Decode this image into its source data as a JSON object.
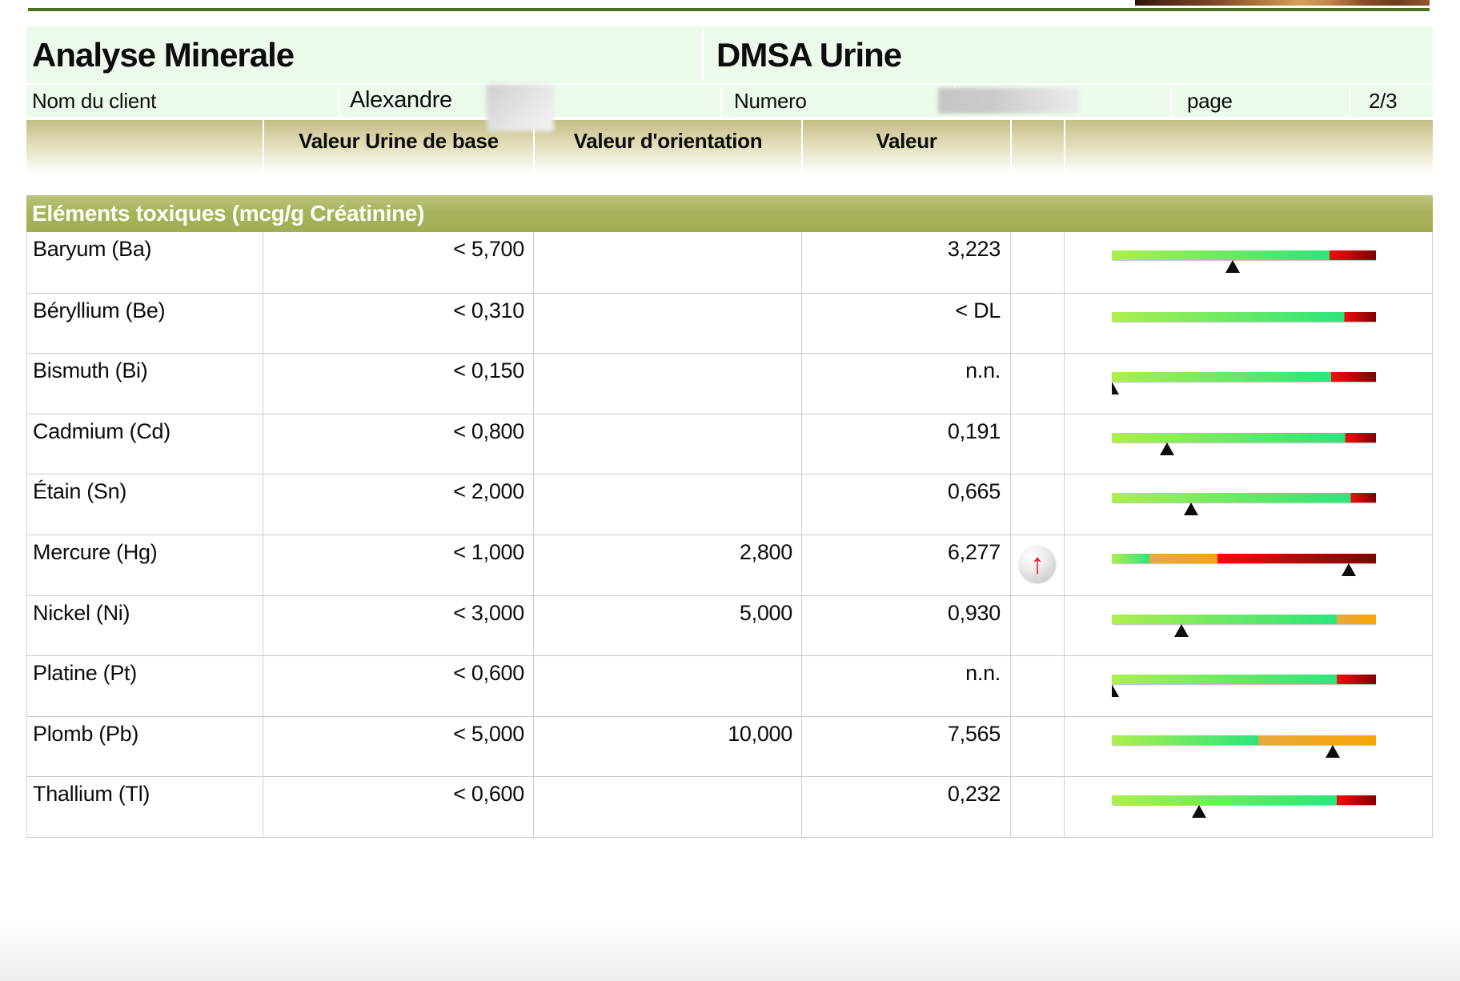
{
  "header": {
    "title_left": "Analyse Minerale",
    "title_right": "DMSA Urine",
    "client_label": "Nom du client",
    "client_name": "Alexandre",
    "numero_label": "Numero",
    "page_label": "page",
    "page_value": "2/3"
  },
  "columns": {
    "base": "Valeur Urine de base",
    "orientation": "Valeur d'orientation",
    "valeur": "Valeur"
  },
  "section": {
    "title": "Eléments toxiques (mcg/g Créatinine)"
  },
  "rows": [
    {
      "name": "Baryum (Ba)",
      "base": "< 5,700",
      "orientation": "",
      "value": "3,223",
      "flag": "",
      "bar": {
        "segments": [
          [
            "green",
            0.824
          ],
          [
            "red",
            1
          ]
        ],
        "marker": 0.458
      }
    },
    {
      "name": "Béryllium (Be)",
      "base": "< 0,310",
      "orientation": "",
      "value": "< DL",
      "flag": "",
      "bar": {
        "segments": [
          [
            "green",
            0.88
          ],
          [
            "red",
            1
          ]
        ],
        "marker": null
      }
    },
    {
      "name": "Bismuth (Bi)",
      "base": "< 0,150",
      "orientation": "",
      "value": "n.n.",
      "flag": "",
      "bar": {
        "segments": [
          [
            "green",
            0.83
          ],
          [
            "red",
            1
          ]
        ],
        "marker": 0.0
      }
    },
    {
      "name": "Cadmium (Cd)",
      "base": "< 0,800",
      "orientation": "",
      "value": "0,191",
      "flag": "",
      "bar": {
        "segments": [
          [
            "green",
            0.884
          ],
          [
            "red",
            1
          ]
        ],
        "marker": 0.208
      }
    },
    {
      "name": "Étain (Sn)",
      "base": "< 2,000",
      "orientation": "",
      "value": "0,665",
      "flag": "",
      "bar": {
        "segments": [
          [
            "green",
            0.905
          ],
          [
            "red",
            1
          ]
        ],
        "marker": 0.3
      }
    },
    {
      "name": "Mercure (Hg)",
      "base": "< 1,000",
      "orientation": "2,800",
      "value": "6,277",
      "flag": "up",
      "bar": {
        "segments": [
          [
            "green",
            0.143
          ],
          [
            "orange",
            0.4
          ],
          [
            "red",
            1
          ]
        ],
        "marker": 0.896
      }
    },
    {
      "name": "Nickel (Ni)",
      "base": "< 3,000",
      "orientation": "5,000",
      "value": "0,930",
      "flag": "",
      "bar": {
        "segments": [
          [
            "green",
            0.851
          ],
          [
            "orange",
            1
          ]
        ],
        "marker": 0.265
      }
    },
    {
      "name": "Platine (Pt)",
      "base": "< 0,600",
      "orientation": "",
      "value": "n.n.",
      "flag": "",
      "bar": {
        "segments": [
          [
            "green",
            0.851
          ],
          [
            "red",
            1
          ]
        ],
        "marker": 0.0
      }
    },
    {
      "name": "Plomb (Pb)",
      "base": "< 5,000",
      "orientation": "10,000",
      "value": "7,565",
      "flag": "",
      "bar": {
        "segments": [
          [
            "green",
            0.554
          ],
          [
            "orange",
            1
          ]
        ],
        "marker": 0.836
      }
    },
    {
      "name": "Thallium (Tl)",
      "base": "< 0,600",
      "orientation": "",
      "value": "0,232",
      "flag": "",
      "bar": {
        "segments": [
          [
            "green",
            0.851
          ],
          [
            "red",
            1
          ]
        ],
        "marker": 0.33
      }
    }
  ],
  "colors": {
    "rule_green": "#4e7223",
    "header_bg": "#ecfaeb",
    "section_bar": "#a9b35c",
    "segments": {
      "green": [
        "#aeee4e",
        "#2ce57c"
      ],
      "orange": [
        "#e9a93e",
        "#f8a402"
      ],
      "red": [
        "#f20d0d",
        "#7e0202"
      ]
    }
  }
}
